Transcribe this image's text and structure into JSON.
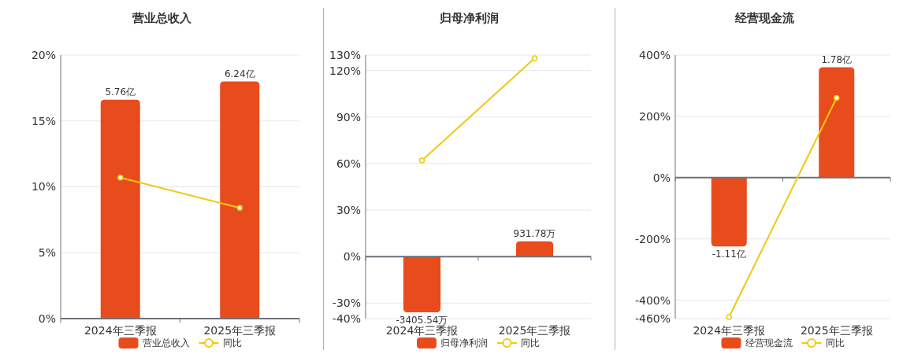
{
  "chart_data": [
    {
      "type": "bar",
      "title": "营业总收入",
      "categories": [
        "2024年三季报",
        "2025年三季报"
      ],
      "series": [
        {
          "name": "营业总收入",
          "axis": "y2",
          "color": "#e84c1c",
          "values": [
            5.76,
            6.24
          ],
          "value_labels": [
            "5.76亿",
            "6.24亿"
          ]
        },
        {
          "name": "同比",
          "type": "line",
          "color": "#f2c811",
          "values": [
            10.7,
            8.4
          ]
        }
      ],
      "ylim": [
        0,
        20
      ],
      "yticks": [
        {
          "value": 0,
          "label": "0%"
        },
        {
          "value": 5,
          "label": "5%"
        },
        {
          "value": 10,
          "label": "10%"
        },
        {
          "value": 15,
          "label": "15%"
        },
        {
          "value": 20,
          "label": "20%"
        }
      ],
      "grid": "y",
      "legend": "bottom",
      "marker": "circle"
    },
    {
      "type": "bar",
      "title": "归母净利润",
      "categories": [
        "2024年三季报",
        "2025年三季报"
      ],
      "series": [
        {
          "name": "归母净利润",
          "axis": "y2",
          "color": "#e84c1c",
          "values": [
            -3405.54,
            931.78
          ],
          "value_labels": [
            "-3405.54万",
            "931.78万"
          ]
        },
        {
          "name": "同比",
          "type": "line",
          "color": "#f2c811",
          "values": [
            62,
            128
          ]
        }
      ],
      "ylim": [
        -40,
        130
      ],
      "yticks": [
        {
          "value": -40,
          "label": "-40%"
        },
        {
          "value": -30,
          "label": "-30%"
        },
        {
          "value": 0,
          "label": "0%"
        },
        {
          "value": 30,
          "label": "30%"
        },
        {
          "value": 60,
          "label": "60%"
        },
        {
          "value": 90,
          "label": "90%"
        },
        {
          "value": 120,
          "label": "120%"
        },
        {
          "value": 130,
          "label": "130%"
        }
      ],
      "grid": "y",
      "legend": "bottom",
      "marker": "circle"
    },
    {
      "type": "bar",
      "title": "经营现金流",
      "categories": [
        "2024年三季报",
        "2025年三季报"
      ],
      "series": [
        {
          "name": "经营现金流",
          "axis": "y2",
          "color": "#e84c1c",
          "values": [
            -1.11,
            1.78
          ],
          "value_labels": [
            "-1.11亿",
            "1.78亿"
          ]
        },
        {
          "name": "同比",
          "type": "line",
          "color": "#f2c811",
          "values": [
            -455,
            260
          ]
        }
      ],
      "ylim": [
        -460,
        400
      ],
      "yticks": [
        {
          "value": -460,
          "label": "-460%"
        },
        {
          "value": -400,
          "label": "-400%"
        },
        {
          "value": -200,
          "label": "-200%"
        },
        {
          "value": 0,
          "label": "0%"
        },
        {
          "value": 200,
          "label": "200%"
        },
        {
          "value": 400,
          "label": "400%"
        }
      ],
      "grid": "y",
      "legend": "bottom",
      "marker": "circle"
    }
  ]
}
